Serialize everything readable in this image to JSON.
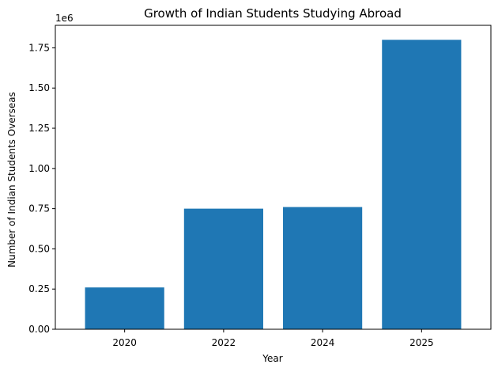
{
  "colors": {
    "bar": "#1f77b4",
    "axis": "#000000",
    "background": "#ffffff"
  },
  "chart_data": {
    "type": "bar",
    "title": "Growth of Indian Students Studying Abroad",
    "xlabel": "Year",
    "ylabel": "Number of Indian Students Overseas",
    "categories": [
      "2020",
      "2022",
      "2024",
      "2025"
    ],
    "values": [
      260000,
      750000,
      760000,
      1800000
    ],
    "ylim": [
      0,
      1890000
    ],
    "y_ticks": [
      0,
      250000,
      500000,
      750000,
      1000000,
      1250000,
      1500000,
      1750000
    ],
    "y_tick_labels": [
      "0.00",
      "0.25",
      "0.50",
      "0.75",
      "1.00",
      "1.25",
      "1.50",
      "1.75"
    ],
    "y_offset_label": "1e6",
    "grid": false
  }
}
